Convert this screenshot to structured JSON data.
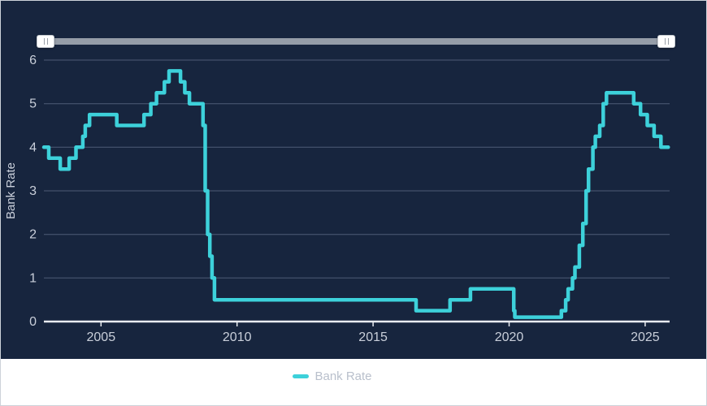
{
  "frame": {
    "background": "#ffffff",
    "border_color": "#cdd2d9"
  },
  "panel": {
    "background": "#17253E"
  },
  "slider": {
    "track_color": "#959DA8",
    "handle_color": "#ffffff",
    "grip_color": "#9aa0a8"
  },
  "legend": {
    "label": "Bank Rate",
    "text_color": "#B9C0CC"
  },
  "chart_data": {
    "type": "line",
    "step": true,
    "title": "",
    "xlabel": "",
    "ylabel": "Bank Rate",
    "xlim": [
      2002.9,
      2025.9
    ],
    "ylim": [
      0,
      6
    ],
    "x_ticks": [
      2005,
      2010,
      2015,
      2020,
      2025
    ],
    "y_ticks": [
      0,
      1,
      2,
      3,
      4,
      5,
      6
    ],
    "grid": true,
    "legend_position": "bottom",
    "line_width": 4.5,
    "x_end": 2025.85,
    "axis": {
      "grid_color": "#4F5C76",
      "axis_line_color": "#E9ECF1",
      "tick_color": "#E9ECF1",
      "label_color": "#C9CFDA"
    },
    "series": [
      {
        "name": "Bank Rate",
        "color": "#3DD1DA",
        "points": [
          [
            2002.9,
            4.0
          ],
          [
            2003.08,
            3.75
          ],
          [
            2003.5,
            3.5
          ],
          [
            2003.83,
            3.75
          ],
          [
            2004.08,
            4.0
          ],
          [
            2004.33,
            4.25
          ],
          [
            2004.42,
            4.5
          ],
          [
            2004.58,
            4.75
          ],
          [
            2005.58,
            4.5
          ],
          [
            2006.58,
            4.75
          ],
          [
            2006.83,
            5.0
          ],
          [
            2007.04,
            5.25
          ],
          [
            2007.33,
            5.5
          ],
          [
            2007.5,
            5.75
          ],
          [
            2007.92,
            5.5
          ],
          [
            2008.08,
            5.25
          ],
          [
            2008.25,
            5.0
          ],
          [
            2008.75,
            4.5
          ],
          [
            2008.83,
            3.0
          ],
          [
            2008.92,
            2.0
          ],
          [
            2009.0,
            1.5
          ],
          [
            2009.08,
            1.0
          ],
          [
            2009.17,
            0.5
          ],
          [
            2016.58,
            0.25
          ],
          [
            2017.83,
            0.5
          ],
          [
            2018.58,
            0.75
          ],
          [
            2020.17,
            0.25
          ],
          [
            2020.21,
            0.1
          ],
          [
            2021.92,
            0.25
          ],
          [
            2022.08,
            0.5
          ],
          [
            2022.17,
            0.75
          ],
          [
            2022.33,
            1.0
          ],
          [
            2022.42,
            1.25
          ],
          [
            2022.58,
            1.75
          ],
          [
            2022.71,
            2.25
          ],
          [
            2022.83,
            3.0
          ],
          [
            2022.92,
            3.5
          ],
          [
            2023.08,
            4.0
          ],
          [
            2023.17,
            4.25
          ],
          [
            2023.33,
            4.5
          ],
          [
            2023.46,
            5.0
          ],
          [
            2023.58,
            5.25
          ],
          [
            2024.58,
            5.0
          ],
          [
            2024.83,
            4.75
          ],
          [
            2025.08,
            4.5
          ],
          [
            2025.33,
            4.25
          ],
          [
            2025.58,
            4.0
          ]
        ]
      }
    ]
  }
}
